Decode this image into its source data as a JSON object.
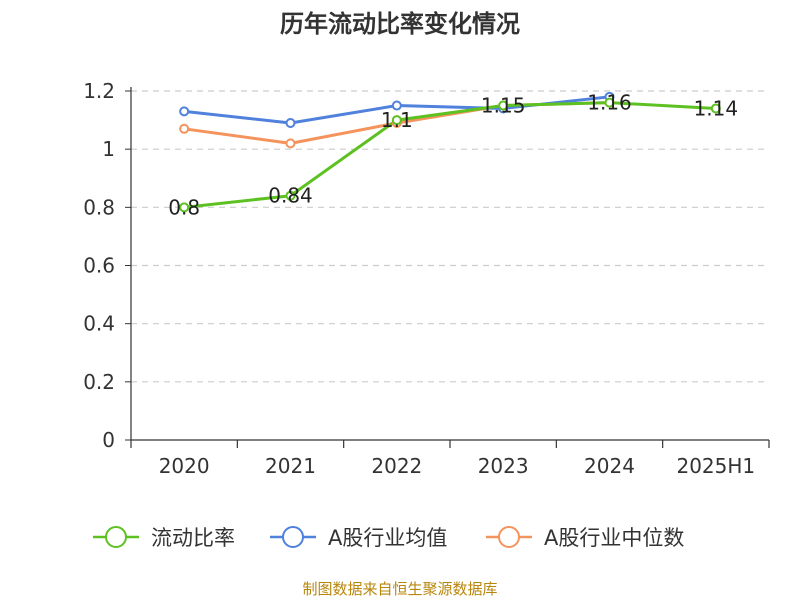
{
  "chart_data": {
    "type": "line",
    "title": "历年流动比率变化情况",
    "categories": [
      "2020",
      "2021",
      "2022",
      "2023",
      "2024",
      "2025H1"
    ],
    "yticks": [
      "0",
      "0.2",
      "0.4",
      "0.6",
      "0.8",
      "1",
      "1.2"
    ],
    "ylim": [
      0,
      1.2
    ],
    "grid": true,
    "legend_position": "bottom",
    "series": [
      {
        "name": "流动比率",
        "color": "#5dc122",
        "values": [
          0.8,
          0.84,
          1.1,
          1.15,
          1.16,
          1.14
        ],
        "labels": [
          "0.8",
          "0.84",
          "1.1",
          "1.15",
          "1.16",
          "1.14"
        ]
      },
      {
        "name": "A股行业均值",
        "color": "#4f81dd",
        "values": [
          1.13,
          1.09,
          1.15,
          1.14,
          1.18,
          null
        ]
      },
      {
        "name": "A股行业中位数",
        "color": "#f5935c",
        "values": [
          1.07,
          1.02,
          1.09,
          1.15,
          1.16,
          null
        ]
      }
    ],
    "source": "制图数据来自恒生聚源数据库"
  }
}
